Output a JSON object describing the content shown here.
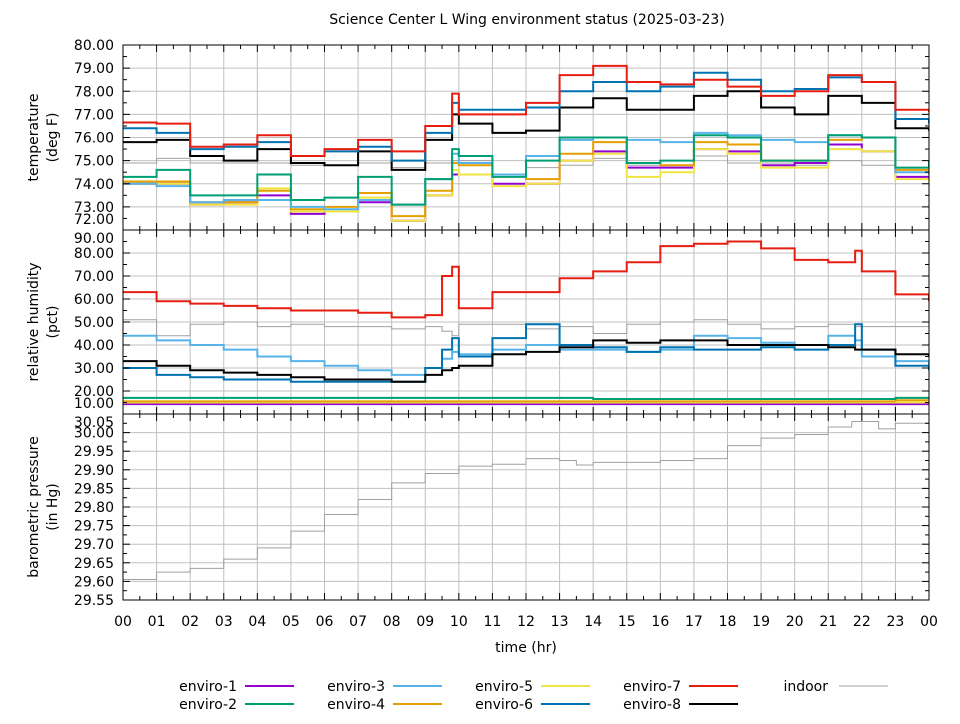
{
  "chart_data": {
    "type": "line",
    "title": "Science Center L Wing environment status (2025-03-23)",
    "xlabel": "time (hr)",
    "x_tick_labels": [
      "00",
      "01",
      "02",
      "03",
      "04",
      "05",
      "06",
      "07",
      "08",
      "09",
      "10",
      "11",
      "12",
      "13",
      "14",
      "15",
      "16",
      "17",
      "18",
      "19",
      "20",
      "21",
      "22",
      "23",
      "00"
    ],
    "xlim": [
      0,
      24
    ],
    "grid": true,
    "legend_position": "bottom",
    "colors": {
      "enviro-1": "#9400d3",
      "enviro-2": "#009e73",
      "enviro-3": "#56b4e9",
      "enviro-4": "#e69f00",
      "enviro-5": "#f0e442",
      "enviro-6": "#0072b2",
      "enviro-7": "#e51e10",
      "enviro-8": "#000000",
      "indoor": "#a0a0a0"
    },
    "legend": [
      "enviro-1",
      "enviro-2",
      "enviro-3",
      "enviro-4",
      "enviro-5",
      "enviro-6",
      "enviro-7",
      "enviro-8",
      "indoor"
    ],
    "panels": [
      {
        "ylabel": [
          "temperature",
          "(deg F)"
        ],
        "ylim": [
          72,
          80
        ],
        "y_tick_labels": [
          "80.00",
          "79.00",
          "78.00",
          "77.00",
          "76.00",
          "75.00",
          "74.00",
          "73.00",
          "72.00"
        ],
        "x": [
          0,
          1,
          2,
          3,
          4,
          5,
          6,
          7,
          8,
          9,
          9.8,
          10,
          11,
          12,
          13,
          14,
          15,
          16,
          17,
          18,
          19,
          20,
          21,
          22,
          23,
          24
        ],
        "series": [
          {
            "name": "indoor",
            "values": [
              74.9,
              75.1,
              74.9,
              74.9,
              74.9,
              74.8,
              74.8,
              74.9,
              74.7,
              74.9,
              75.0,
              75.0,
              74.4,
              74.7,
              74.8,
              75.1,
              74.8,
              74.8,
              75.2,
              74.9,
              74.9,
              74.8,
              75.0,
              74.8,
              74.6,
              74.5
            ]
          },
          {
            "name": "enviro-1",
            "values": [
              74.0,
              74.0,
              73.1,
              73.2,
              73.5,
              72.7,
              72.8,
              73.2,
              72.4,
              73.5,
              74.4,
              74.4,
              74.0,
              74.0,
              75.0,
              75.4,
              74.7,
              74.7,
              75.5,
              75.4,
              74.8,
              74.9,
              75.7,
              75.4,
              74.3,
              74.2
            ]
          },
          {
            "name": "enviro-5",
            "values": [
              74.0,
              74.0,
              73.1,
              73.1,
              73.8,
              72.8,
              72.8,
              73.4,
              72.4,
              73.5,
              74.6,
              74.4,
              73.9,
              74.0,
              75.0,
              75.3,
              74.3,
              74.5,
              75.5,
              75.3,
              74.7,
              74.7,
              75.5,
              75.4,
              74.2,
              74.1
            ]
          },
          {
            "name": "enviro-4",
            "values": [
              74.1,
              74.1,
              73.2,
              73.2,
              73.7,
              72.9,
              73.0,
              73.6,
              72.6,
              73.7,
              74.9,
              74.8,
              74.4,
              74.2,
              75.3,
              75.8,
              74.9,
              74.8,
              75.8,
              75.7,
              75.0,
              75.0,
              75.9,
              76.0,
              74.6,
              74.4
            ]
          },
          {
            "name": "enviro-3",
            "values": [
              74.0,
              73.9,
              73.2,
              73.3,
              73.3,
              73.0,
              72.9,
              73.3,
              73.1,
              74.2,
              75.3,
              74.9,
              74.4,
              75.2,
              75.9,
              76.0,
              75.9,
              75.8,
              76.2,
              76.1,
              75.9,
              75.8,
              76.1,
              76.0,
              74.5,
              74.4
            ]
          },
          {
            "name": "enviro-2",
            "values": [
              74.3,
              74.6,
              73.5,
              73.5,
              74.4,
              73.3,
              73.4,
              74.3,
              73.1,
              74.2,
              75.5,
              75.2,
              74.3,
              75.0,
              76.0,
              76.0,
              74.9,
              75.0,
              76.1,
              76.0,
              75.0,
              75.0,
              76.1,
              76.0,
              74.7,
              75.0
            ]
          },
          {
            "name": "enviro-8",
            "values": [
              75.8,
              75.9,
              75.2,
              75.0,
              75.5,
              74.9,
              74.8,
              75.4,
              74.6,
              75.9,
              77.0,
              76.6,
              76.2,
              76.3,
              77.3,
              77.7,
              77.2,
              77.2,
              77.8,
              78.0,
              77.3,
              77.0,
              77.8,
              77.5,
              76.4,
              76.3
            ]
          },
          {
            "name": "enviro-6",
            "values": [
              76.4,
              76.2,
              75.5,
              75.6,
              75.8,
              75.2,
              75.4,
              75.6,
              75.0,
              76.2,
              77.5,
              77.2,
              77.2,
              77.3,
              78.0,
              78.4,
              78.0,
              78.2,
              78.8,
              78.5,
              78.0,
              78.1,
              78.6,
              78.4,
              76.8,
              76.6
            ]
          },
          {
            "name": "enviro-7",
            "values": [
              76.65,
              76.6,
              75.6,
              75.7,
              76.1,
              75.2,
              75.5,
              75.9,
              75.4,
              76.5,
              77.9,
              77.0,
              77.0,
              77.5,
              78.7,
              79.1,
              78.4,
              78.3,
              78.5,
              78.2,
              77.8,
              78.0,
              78.7,
              78.4,
              77.2,
              77.1
            ]
          }
        ]
      },
      {
        "ylabel": [
          "relative humidity",
          "(pct)"
        ],
        "ylim": [
          10,
          90
        ],
        "y_tick_labels": [
          "90.00",
          "80.00",
          "70.00",
          "60.00",
          "50.00",
          "40.00",
          "30.00",
          "20.00",
          "10.00"
        ],
        "x": [
          0,
          1,
          2,
          3,
          4,
          5,
          6,
          7,
          8,
          9,
          9.5,
          9.8,
          10,
          11,
          12,
          13,
          14,
          15,
          16,
          17,
          18,
          19,
          20,
          21,
          21.8,
          22,
          23,
          24
        ],
        "series": [
          {
            "name": "indoor",
            "values": [
              51,
              44,
              49,
              50,
              48,
              49,
              48,
              48,
              47,
              48,
              46,
              44,
              49,
              49,
              47,
              48,
              45,
              49,
              50,
              51,
              49,
              47,
              48,
              49,
              48,
              48,
              48,
              45
            ]
          },
          {
            "name": "enviro-1",
            "values": [
              14.3,
              14.3,
              14.3,
              14.3,
              14.3,
              14.3,
              14.3,
              14.3,
              14.3,
              14.3,
              14.3,
              14.3,
              14.3,
              14.3,
              14.3,
              14.3,
              14.3,
              14.3,
              14.3,
              14.3,
              14.3,
              14.3,
              14.3,
              14.3,
              14.3,
              14.3,
              14.3,
              14.3
            ]
          },
          {
            "name": "enviro-5",
            "values": [
              15,
              15,
              15,
              15,
              15,
              15,
              15,
              15,
              15,
              15,
              15,
              15,
              15,
              15,
              15,
              15,
              15,
              15,
              15,
              15,
              15,
              15,
              15,
              15,
              15,
              15,
              15,
              15
            ]
          },
          {
            "name": "enviro-4",
            "values": [
              15.5,
              15.5,
              15.5,
              15.5,
              15.5,
              15.5,
              15.5,
              15.5,
              15.5,
              15.5,
              15.5,
              15.5,
              15.5,
              15.5,
              15.5,
              15.5,
              15.5,
              15.5,
              15.5,
              15.5,
              15.5,
              15.5,
              15.5,
              15.5,
              15.5,
              15.5,
              16,
              16
            ]
          },
          {
            "name": "enviro-2",
            "values": [
              17,
              17,
              17,
              17,
              17,
              17,
              17,
              17,
              17,
              17,
              17,
              17,
              17,
              17,
              17,
              17,
              16.5,
              16.5,
              16.5,
              16.5,
              16.5,
              16.5,
              16.5,
              16.5,
              16.5,
              16.5,
              17,
              17
            ]
          },
          {
            "name": "enviro-3",
            "values": [
              44,
              42,
              40,
              38,
              35,
              33,
              31,
              29,
              27,
              30,
              34,
              37,
              36,
              38,
              40,
              38,
              38,
              37,
              38,
              44,
              43,
              41,
              40,
              44,
              42,
              35,
              33,
              30
            ]
          },
          {
            "name": "enviro-6",
            "values": [
              30,
              27,
              26,
              25,
              25,
              24,
              24,
              24,
              24,
              30,
              38,
              43,
              35,
              43,
              49,
              40,
              39,
              37,
              39,
              38,
              38,
              39,
              38,
              40,
              49,
              38,
              31,
              29
            ]
          },
          {
            "name": "enviro-8",
            "values": [
              33,
              31,
              29,
              28,
              27,
              26,
              25,
              25,
              24,
              27,
              29,
              30,
              31,
              36,
              37,
              39,
              42,
              41,
              42,
              42,
              40,
              40,
              40,
              39,
              38,
              38,
              36,
              35
            ]
          },
          {
            "name": "enviro-7",
            "values": [
              63,
              59,
              58,
              57,
              56,
              55,
              55,
              54,
              52,
              53,
              70,
              74,
              56,
              63,
              63,
              69,
              72,
              76,
              83,
              84,
              85,
              82,
              77,
              76,
              81,
              72,
              62,
              59
            ]
          }
        ]
      },
      {
        "ylabel": [
          "barometric pressure",
          "(in Hg)"
        ],
        "ylim": [
          29.55,
          30.05
        ],
        "y_tick_labels": [
          "30.05",
          "30.00",
          "29.95",
          "29.90",
          "29.85",
          "29.80",
          "29.75",
          "29.70",
          "29.65",
          "29.60",
          "29.55"
        ],
        "x": [
          0,
          1,
          2,
          3,
          4,
          5,
          6,
          7,
          8,
          9,
          10,
          11,
          12,
          13,
          13.5,
          14,
          15,
          16,
          17,
          18,
          19,
          20,
          21,
          21.7,
          22.5,
          23,
          24
        ],
        "series": [
          {
            "name": "indoor",
            "values": [
              29.605,
              29.625,
              29.635,
              29.66,
              29.69,
              29.735,
              29.78,
              29.82,
              29.865,
              29.89,
              29.91,
              29.915,
              29.93,
              29.925,
              29.913,
              29.92,
              29.92,
              29.925,
              29.93,
              29.965,
              29.985,
              29.995,
              30.015,
              30.03,
              30.01,
              30.025,
              30.005
            ]
          }
        ]
      }
    ]
  }
}
